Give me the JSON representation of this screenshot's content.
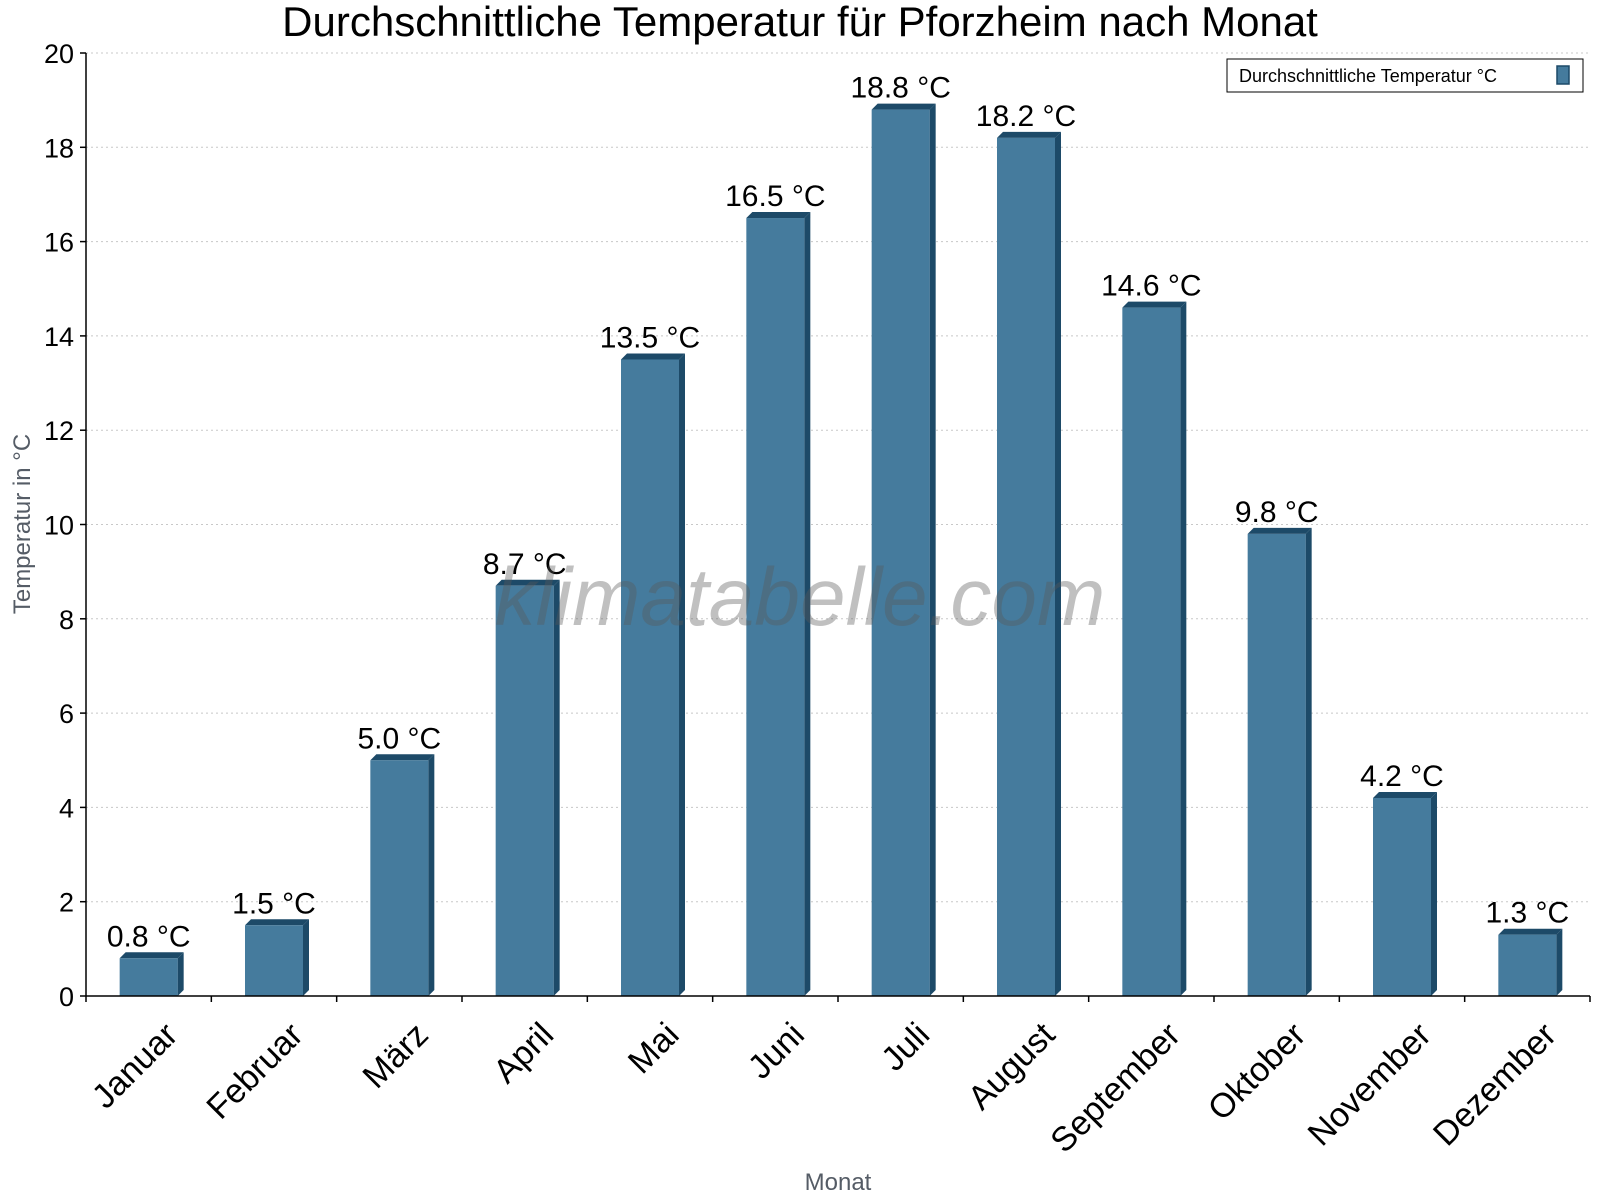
{
  "chart_data": {
    "type": "bar",
    "title": "Durchschnittliche Temperatur für Pforzheim nach Monat",
    "xlabel": "Monat",
    "ylabel": "Temperatur in °C",
    "categories": [
      "Januar",
      "Februar",
      "März",
      "April",
      "Mai",
      "Juni",
      "Juli",
      "August",
      "September",
      "Oktober",
      "November",
      "Dezember"
    ],
    "series": [
      {
        "name": "Durchschnittliche Temperatur °C",
        "values": [
          0.8,
          1.5,
          5.0,
          8.7,
          13.5,
          16.5,
          18.8,
          18.2,
          14.6,
          9.8,
          4.2,
          1.3
        ],
        "labels": [
          "0.8 °C",
          "1.5 °C",
          "5.0 °C",
          "8.7 °C",
          "13.5 °C",
          "16.5 °C",
          "18.8 °C",
          "18.2 °C",
          "14.6 °C",
          "9.8 °C",
          "4.2 °C",
          "1.3 °C"
        ],
        "color": "#457b9d",
        "edge_color": "#1d4a68"
      }
    ],
    "ylim": [
      0,
      20
    ],
    "yticks": [
      0,
      2,
      4,
      6,
      8,
      10,
      12,
      14,
      16,
      18,
      20
    ],
    "grid": true,
    "legend_position": "top-right",
    "watermark": "klimatabelle.com"
  }
}
